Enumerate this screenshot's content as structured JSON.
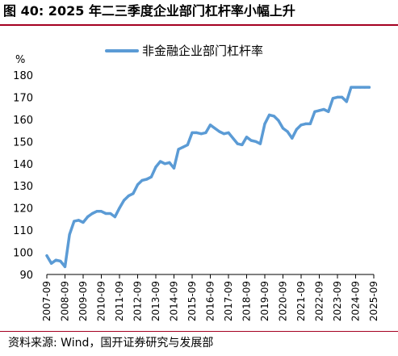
{
  "page": {
    "title": "图 40:  2025 年二三季度企业部门杠杆率小幅上升",
    "source": "资料来源:  Wind，国开证券研究与发展部"
  },
  "colors": {
    "accent_rule": "#a50021",
    "series_line": "#5b9bd5"
  },
  "chart_data": {
    "type": "line",
    "title": "",
    "xlabel": "",
    "ylabel": "%",
    "ylim": [
      90,
      180
    ],
    "yticks": [
      90,
      100,
      110,
      120,
      130,
      140,
      150,
      160,
      170,
      180
    ],
    "xticks": [
      "2007-09",
      "2008-09",
      "2009-09",
      "2010-09",
      "2011-09",
      "2012-09",
      "2013-09",
      "2014-09",
      "2015-09",
      "2016-09",
      "2017-09",
      "2018-09",
      "2019-09",
      "2020-09",
      "2021-09",
      "2022-09",
      "2023-09",
      "2024-09",
      "2025-09"
    ],
    "grid": false,
    "legend": "top-center",
    "series": [
      {
        "name": "非金融企业部门杠杆率",
        "x": [
          "2007-09",
          "2007-12",
          "2008-03",
          "2008-06",
          "2008-09",
          "2008-12",
          "2009-03",
          "2009-06",
          "2009-09",
          "2009-12",
          "2010-03",
          "2010-06",
          "2010-09",
          "2010-12",
          "2011-03",
          "2011-06",
          "2011-09",
          "2011-12",
          "2012-03",
          "2012-06",
          "2012-09",
          "2012-12",
          "2013-03",
          "2013-06",
          "2013-09",
          "2013-12",
          "2014-03",
          "2014-06",
          "2014-09",
          "2014-12",
          "2015-03",
          "2015-06",
          "2015-09",
          "2015-12",
          "2016-03",
          "2016-06",
          "2016-09",
          "2016-12",
          "2017-03",
          "2017-06",
          "2017-09",
          "2017-12",
          "2018-03",
          "2018-06",
          "2018-09",
          "2018-12",
          "2019-03",
          "2019-06",
          "2019-09",
          "2019-12",
          "2020-03",
          "2020-06",
          "2020-09",
          "2020-12",
          "2021-03",
          "2021-06",
          "2021-09",
          "2021-12",
          "2022-03",
          "2022-06",
          "2022-09",
          "2022-12",
          "2023-03",
          "2023-06",
          "2023-09",
          "2023-12",
          "2024-03",
          "2024-06",
          "2024-09",
          "2024-12",
          "2025-03",
          "2025-06"
        ],
        "values": [
          98.5,
          95.0,
          96.5,
          96.0,
          93.5,
          108.0,
          114.0,
          114.5,
          113.5,
          116.0,
          117.5,
          118.5,
          118.5,
          117.5,
          117.5,
          116.0,
          120.0,
          123.5,
          125.5,
          126.5,
          130.5,
          132.5,
          133.0,
          134.0,
          138.5,
          141.0,
          140.0,
          140.5,
          138.0,
          146.5,
          147.5,
          148.5,
          154.0,
          154.0,
          153.5,
          154.0,
          157.5,
          156.0,
          154.5,
          153.5,
          154.0,
          151.5,
          149.0,
          148.5,
          152.0,
          150.5,
          150.0,
          149.0,
          158.0,
          162.0,
          161.5,
          159.5,
          156.0,
          154.5,
          151.5,
          155.5,
          157.5,
          158.0,
          158.0,
          163.5,
          164.0,
          164.5,
          163.5,
          169.5,
          170.0,
          170.0,
          168.0,
          174.5,
          174.5,
          174.5,
          174.5,
          174.5
        ]
      }
    ]
  }
}
